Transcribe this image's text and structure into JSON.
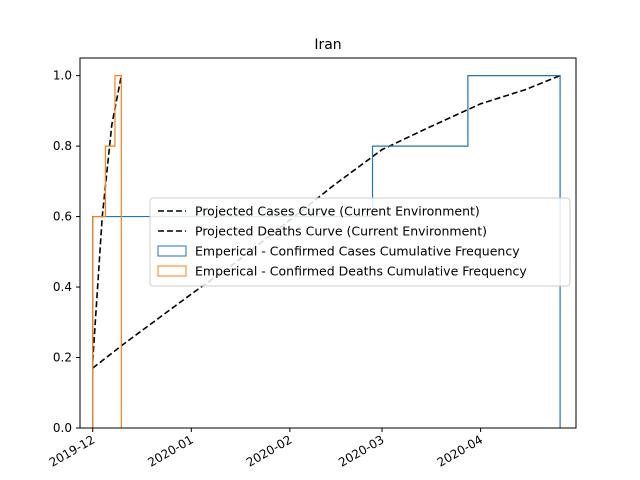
{
  "chart_data": {
    "type": "line",
    "title": "Iran",
    "xlabel": "",
    "ylabel": "",
    "x_axis_type": "date",
    "xlim": [
      "2019-11-27",
      "2020-05-01"
    ],
    "ylim": [
      0,
      1.05
    ],
    "x_ticks": [
      "2019-12",
      "2020-01",
      "2020-02",
      "2020-03",
      "2020-04"
    ],
    "y_ticks": [
      "0.0",
      "0.2",
      "0.4",
      "0.6",
      "0.8",
      "1.0"
    ],
    "grid": false,
    "legend_position": "center-right",
    "series": [
      {
        "name": "Projected Cases Curve (Current Environment)",
        "kind": "dashed-line",
        "color": "#000000",
        "x": [
          "2019-12-01",
          "2019-12-11",
          "2020-01-01",
          "2020-01-15",
          "2020-02-01",
          "2020-02-15",
          "2020-03-01",
          "2020-03-15",
          "2020-04-01",
          "2020-04-15",
          "2020-04-26"
        ],
        "y": [
          0.17,
          0.24,
          0.38,
          0.47,
          0.59,
          0.69,
          0.79,
          0.85,
          0.92,
          0.96,
          1.0
        ]
      },
      {
        "name": "Projected Deaths Curve (Current Environment)",
        "kind": "dashed-line",
        "color": "#000000",
        "x": [
          "2019-12-01",
          "2019-12-04",
          "2019-12-07",
          "2019-12-10"
        ],
        "y": [
          0.19,
          0.6,
          0.86,
          1.0
        ]
      },
      {
        "name": "Emperical - Confirmed Cases Cumulative Frequency",
        "kind": "step-histogram",
        "color": "#1f77b4",
        "x": [
          "2019-12-01",
          "2020-02-27",
          "2020-03-28",
          "2020-04-26"
        ],
        "y": [
          0.6,
          0.8,
          1.0
        ]
      },
      {
        "name": "Emperical - Confirmed Deaths Cumulative Frequency",
        "kind": "step-histogram",
        "color": "#ff7f0e",
        "x": [
          "2019-12-01",
          "2019-12-05",
          "2019-12-08",
          "2019-12-10"
        ],
        "y": [
          0.6,
          0.8,
          1.0
        ]
      }
    ]
  }
}
